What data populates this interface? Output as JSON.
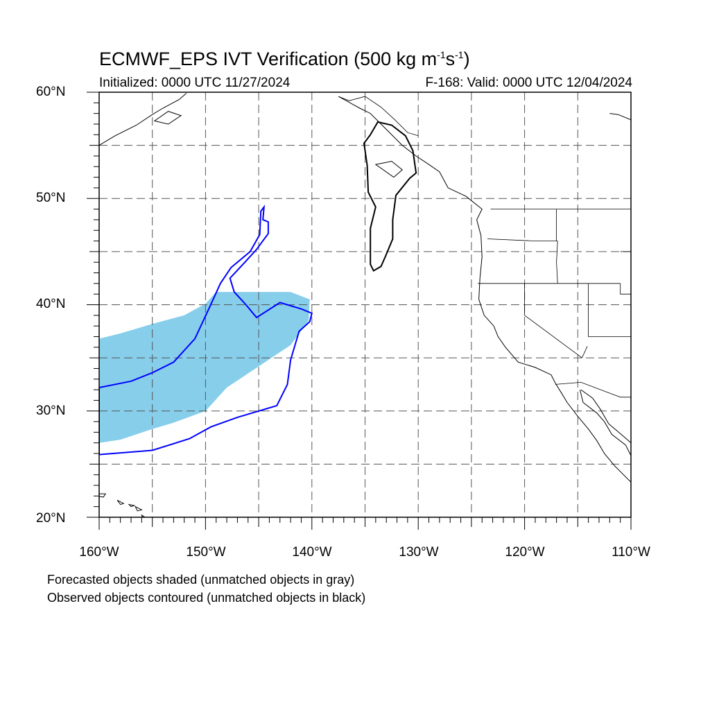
{
  "title": {
    "prefix": "ECMWF_EPS IVT Verification (500 kg m",
    "exp1": "-1",
    "mid": "s",
    "exp2": "-1",
    "suffix": ")"
  },
  "initialized": "Initialized: 0000 UTC 11/27/2024",
  "valid": "F-168: Valid: 0000 UTC 12/04/2024",
  "axes": {
    "lon_range": [
      -160,
      -110
    ],
    "lat_range": [
      20,
      60
    ],
    "lon_ticks": [
      "160°W",
      "150°W",
      "140°W",
      "130°W",
      "120°W",
      "110°W"
    ],
    "lat_ticks": [
      "60°N",
      "50°N",
      "40°N",
      "30°N",
      "20°N"
    ],
    "grid": "dashed, every 5 degrees"
  },
  "legend": {
    "line1": "Forecasted objects shaded (unmatched objects in gray)",
    "line2": "Observed objects contoured (unmatched objects in black)"
  },
  "colors": {
    "forecast_fill": "#87ceeb",
    "observed_matched": "#0000ff",
    "observed_unmatched": "#000000",
    "coastline": "#000000",
    "grid": "#555555"
  },
  "objects": {
    "forecast_matched": [
      [
        -160,
        36.8
      ],
      [
        -158,
        37.3
      ],
      [
        -155,
        38.2
      ],
      [
        -152,
        39.0
      ],
      [
        -150,
        40.1
      ],
      [
        -149,
        41.2
      ],
      [
        -142,
        41.2
      ],
      [
        -140.2,
        40.5
      ],
      [
        -140.3,
        38.5
      ],
      [
        -142,
        36.2
      ],
      [
        -145,
        34.2
      ],
      [
        -148,
        32.2
      ],
      [
        -150,
        30.0
      ],
      [
        -153,
        28.9
      ],
      [
        -155,
        28.3
      ],
      [
        -158,
        27.3
      ],
      [
        -160,
        27.0
      ]
    ],
    "observed_matched": [
      [
        -160,
        32.2
      ],
      [
        -157,
        32.8
      ],
      [
        -155,
        33.6
      ],
      [
        -153,
        34.6
      ],
      [
        -151,
        36.8
      ],
      [
        -149.6,
        39.8
      ],
      [
        -148.6,
        42.0
      ],
      [
        -147.6,
        43.5
      ],
      [
        -145.8,
        45.0
      ],
      [
        -144.9,
        46.6
      ],
      [
        -144.8,
        48.8
      ],
      [
        -144.5,
        49.2
      ],
      [
        -144.6,
        48.0
      ],
      [
        -144.1,
        47.8
      ],
      [
        -144.1,
        46.7
      ],
      [
        -145.2,
        45.2
      ],
      [
        -146.3,
        44.0
      ],
      [
        -147.7,
        42.5
      ],
      [
        -147.3,
        41.2
      ],
      [
        -146.2,
        40.0
      ],
      [
        -145.2,
        38.8
      ],
      [
        -143,
        40.2
      ],
      [
        -141,
        39.6
      ],
      [
        -140,
        39.2
      ],
      [
        -140.2,
        38.4
      ],
      [
        -141.2,
        37.5
      ],
      [
        -142,
        34.8
      ],
      [
        -142.3,
        32.5
      ],
      [
        -143.3,
        30.5
      ],
      [
        -145,
        30.0
      ],
      [
        -147,
        29.4
      ],
      [
        -149.5,
        28.5
      ],
      [
        -151.5,
        27.4
      ],
      [
        -155,
        26.3
      ],
      [
        -160,
        25.9
      ]
    ],
    "observed_unmatched": [
      [
        -134.5,
        56.0
      ],
      [
        -133.8,
        57.2
      ],
      [
        -132.5,
        56.9
      ],
      [
        -131.2,
        55.9
      ],
      [
        -130.5,
        54.5
      ],
      [
        -130.2,
        52.4
      ],
      [
        -130.8,
        51.9
      ],
      [
        -132.1,
        50.3
      ],
      [
        -132.4,
        48.0
      ],
      [
        -132.4,
        46.2
      ],
      [
        -133.1,
        44.5
      ],
      [
        -133.5,
        43.6
      ],
      [
        -134.2,
        43.2
      ],
      [
        -134.5,
        43.8
      ],
      [
        -134.5,
        47.2
      ],
      [
        -134.0,
        49.2
      ],
      [
        -134.7,
        50.6
      ],
      [
        -134.8,
        53.1
      ],
      [
        -135.1,
        55.2
      ],
      [
        -134.5,
        56.0
      ]
    ],
    "hawaii": [
      [
        [
          -160.3,
          22.2
        ],
        [
          -159.4,
          22.2
        ],
        [
          -159.6,
          21.9
        ],
        [
          -160.3,
          22.0
        ]
      ],
      [
        [
          -158.3,
          21.6
        ],
        [
          -157.7,
          21.3
        ],
        [
          -158.0,
          21.2
        ]
      ],
      [
        [
          -157.2,
          21.2
        ],
        [
          -156.7,
          21.1
        ],
        [
          -157.0,
          21.0
        ]
      ],
      [
        [
          -156.6,
          21.0
        ],
        [
          -156.0,
          20.7
        ],
        [
          -156.4,
          20.6
        ]
      ],
      [
        [
          -156.0,
          20.2
        ],
        [
          -155.1,
          19.6
        ],
        [
          -154.8,
          19.5
        ],
        [
          -155.6,
          19.0
        ]
      ]
    ],
    "coastline": [
      [
        -110,
        57.4
      ],
      [
        -111.2,
        57.9
      ],
      [
        -112.0,
        58.0
      ]
    ],
    "na_coast": [
      [
        -137.5,
        59.6
      ],
      [
        -135.5,
        58.5
      ],
      [
        -134.5,
        58.0
      ],
      [
        -133.0,
        56.5
      ],
      [
        -131.5,
        55.0
      ],
      [
        -130.2,
        54.0
      ],
      [
        -129.0,
        53.2
      ],
      [
        -128.0,
        52.5
      ],
      [
        -127.2,
        51.0
      ],
      [
        -125.5,
        50.2
      ],
      [
        -124.0,
        49.0
      ],
      [
        -124.5,
        48.0
      ],
      [
        -124.1,
        46.5
      ],
      [
        -124.0,
        44.5
      ],
      [
        -124.2,
        42.5
      ],
      [
        -124.3,
        40.5
      ],
      [
        -123.8,
        39.0
      ],
      [
        -122.9,
        38.0
      ],
      [
        -122.5,
        37.0
      ],
      [
        -121.8,
        36.0
      ],
      [
        -120.6,
        34.6
      ],
      [
        -119.0,
        34.1
      ],
      [
        -117.5,
        33.4
      ],
      [
        -117.1,
        32.6
      ],
      [
        -116.6,
        31.8
      ],
      [
        -116.0,
        30.8
      ],
      [
        -115.0,
        29.5
      ],
      [
        -114.0,
        28.3
      ],
      [
        -113.2,
        27.2
      ],
      [
        -112.5,
        26.0
      ],
      [
        -111.5,
        24.8
      ],
      [
        -110.0,
        23.3
      ]
    ],
    "gulf_ca": [
      [
        -114.8,
        32.0
      ],
      [
        -114.5,
        30.8
      ],
      [
        -113.2,
        29.8
      ],
      [
        -112.5,
        29.0
      ],
      [
        -111.8,
        27.8
      ],
      [
        -110.5,
        26.8
      ],
      [
        -110.0,
        25.8
      ]
    ],
    "mainland_mx": [
      [
        -114.7,
        32.0
      ],
      [
        -113.6,
        31.2
      ],
      [
        -112.9,
        30.2
      ],
      [
        -112.1,
        28.8
      ],
      [
        -110.8,
        27.7
      ],
      [
        -110.0,
        27.0
      ]
    ],
    "state_lines": [
      [
        [
          -123.2,
          49.0
        ],
        [
          -110,
          49.0
        ]
      ],
      [
        [
          -124.4,
          42.0
        ],
        [
          -111,
          42.0
        ]
      ],
      [
        [
          -120,
          42.0
        ],
        [
          -120,
          39.0
        ],
        [
          -114.6,
          35.0
        ]
      ],
      [
        [
          -117.0,
          46.0
        ],
        [
          -117.0,
          49.0
        ]
      ],
      [
        [
          -116.9,
          46.0
        ],
        [
          -117.0,
          44.0
        ],
        [
          -116.9,
          42.0
        ]
      ],
      [
        [
          -116.9,
          46.0
        ],
        [
          -119,
          46.0
        ],
        [
          -123.5,
          46.2
        ]
      ],
      [
        [
          -114.0,
          42.0
        ],
        [
          -114.0,
          37.0
        ],
        [
          -110,
          37.0
        ]
      ],
      [
        [
          -114.1,
          36.1
        ],
        [
          -114.6,
          35.0
        ]
      ],
      [
        [
          -117.1,
          32.5
        ],
        [
          -114.7,
          32.7
        ],
        [
          -111.0,
          31.3
        ],
        [
          -110,
          31.3
        ]
      ],
      [
        [
          -111.0,
          45.0
        ],
        [
          -110,
          45.0
        ]
      ],
      [
        [
          -111.0,
          42.0
        ],
        [
          -111.0,
          41.0
        ],
        [
          -110,
          41.0
        ]
      ]
    ],
    "canada_border_nw": [
      [
        -137.5,
        59.6
      ],
      [
        -136.5,
        59.2
      ],
      [
        -135.0,
        59.6
      ],
      [
        -133.5,
        58.6
      ],
      [
        -132.2,
        57.4
      ],
      [
        -131.0,
        56.2
      ],
      [
        -130.0,
        55.9
      ]
    ],
    "alaska_coast": [
      [
        -160,
        55.0
      ],
      [
        -158.5,
        55.9
      ],
      [
        -156.5,
        56.9
      ],
      [
        -155.0,
        57.9
      ],
      [
        -154.0,
        58.5
      ],
      [
        -152.5,
        59.3
      ],
      [
        -151.8,
        59.9
      ]
    ],
    "kodiak": [
      [
        -154.8,
        57.3
      ],
      [
        -153.5,
        57.0
      ],
      [
        -152.3,
        57.8
      ],
      [
        -153.5,
        58.2
      ]
    ],
    "bc_lakes": [
      [
        -134.0,
        53.2
      ],
      [
        -132.5,
        53.5
      ],
      [
        -131.5,
        52.7
      ],
      [
        -132.3,
        52.0
      ]
    ]
  }
}
